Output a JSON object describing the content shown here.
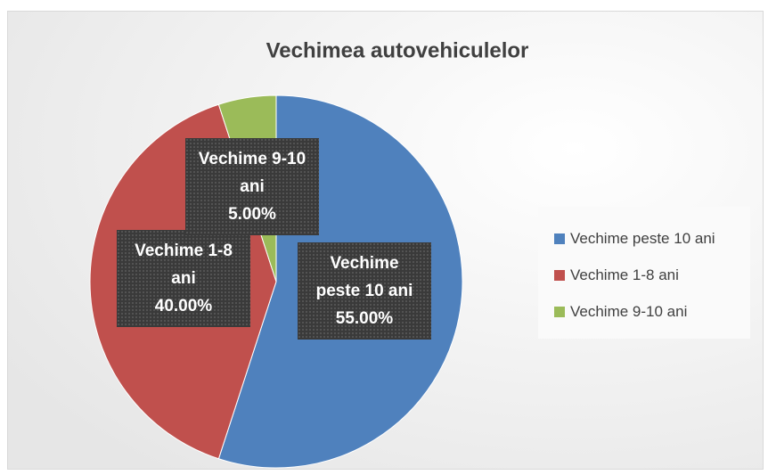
{
  "chart_data": {
    "type": "pie",
    "title": "Vechimea autovehiculelor",
    "categories": [
      "Vechime peste 10 ani",
      "Vechime 1-8 ani",
      "Vechime 9-10 ani"
    ],
    "values": [
      55,
      40,
      5
    ],
    "value_labels": [
      "55.00%",
      "40.00%",
      "5.00%"
    ],
    "colors": [
      "#4f81bd",
      "#c0504d",
      "#9bbb59"
    ],
    "legend": "right"
  }
}
